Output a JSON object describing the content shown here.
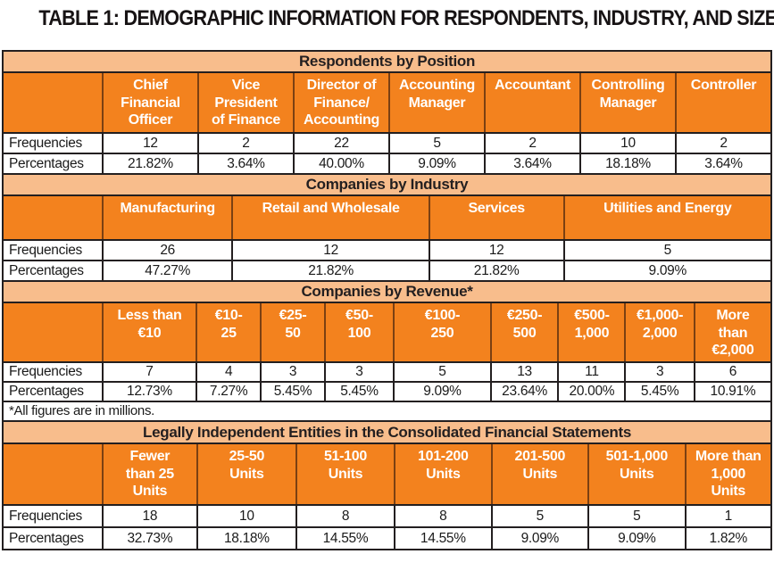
{
  "title": "TABLE 1: DEMOGRAPHIC INFORMATION FOR RESPONDENTS, INDUSTRY, AND SIZE",
  "labels": {
    "frequencies": "Frequencies",
    "percentages": "Percentages"
  },
  "colors": {
    "orange": "#F3821E",
    "band": "#F8BD8C",
    "border": "#231F20",
    "hsep": "#7B4012",
    "header-text": "#FFFFFF"
  },
  "sections": [
    {
      "header": "Respondents by Position",
      "columns": [
        "Chief\nFinancial\nOfficer",
        "Vice\nPresident\nof Finance",
        "Director of\nFinance/\nAccounting",
        "Accounting\nManager",
        "Accountant",
        "Controlling\nManager",
        "Controller"
      ],
      "frequencies": [
        "12",
        "2",
        "22",
        "5",
        "2",
        "10",
        "2"
      ],
      "percentages": [
        "21.82%",
        "3.64%",
        "40.00%",
        "9.09%",
        "3.64%",
        "18.18%",
        "3.64%"
      ]
    },
    {
      "header": "Companies by Industry",
      "columns": [
        "Manufacturing",
        "Retail and Wholesale",
        "Services",
        "Utilities and Energy"
      ],
      "frequencies": [
        "26",
        "12",
        "12",
        "5"
      ],
      "percentages": [
        "47.27%",
        "21.82%",
        "21.82%",
        "9.09%"
      ]
    },
    {
      "header": "Companies by Revenue*",
      "columns": [
        "Less than\n€10",
        "€10-\n25",
        "€25-\n50",
        "€50-\n100",
        "€100-\n250",
        "€250-\n500",
        "€500-\n1,000",
        "€1,000-\n2,000",
        "More\nthan\n€2,000"
      ],
      "frequencies": [
        "7",
        "4",
        "3",
        "3",
        "5",
        "13",
        "11",
        "3",
        "6"
      ],
      "percentages": [
        "12.73%",
        "7.27%",
        "5.45%",
        "5.45%",
        "9.09%",
        "23.64%",
        "20.00%",
        "5.45%",
        "10.91%"
      ],
      "footnote": "*All figures are in millions."
    },
    {
      "header": "Legally Independent Entities in the Consolidated Financial Statements",
      "columns": [
        "Fewer\nthan 25\nUnits",
        "25-50\nUnits",
        "51-100\nUnits",
        "101-200\nUnits",
        "201-500\nUnits",
        "501-1,000\nUnits",
        "More than\n1,000\nUnits"
      ],
      "frequencies": [
        "18",
        "10",
        "8",
        "8",
        "5",
        "5",
        "1"
      ],
      "percentages": [
        "32.73%",
        "18.18%",
        "14.55%",
        "14.55%",
        "9.09%",
        "9.09%",
        "1.82%"
      ]
    }
  ]
}
